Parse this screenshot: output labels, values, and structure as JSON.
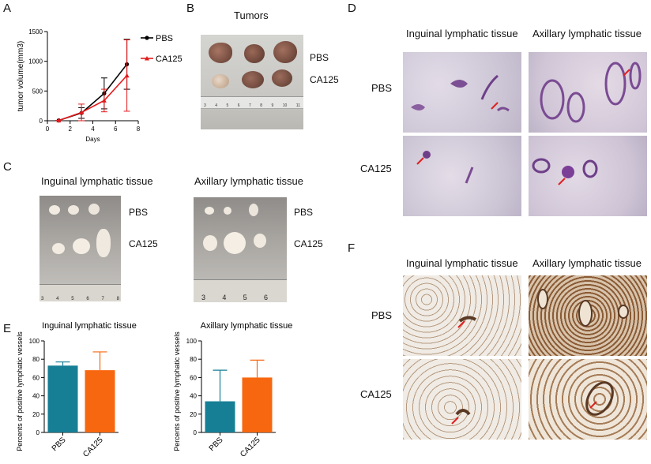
{
  "panels": {
    "a": "A",
    "b": "B",
    "c": "C",
    "d": "D",
    "e": "E",
    "f": "F"
  },
  "panel_b": {
    "title": "Tumors",
    "row1": "PBS",
    "row2": "CA125",
    "ruler_ticks": [
      "3",
      "4",
      "5",
      "6",
      "7",
      "8",
      "9",
      "10",
      "11"
    ]
  },
  "panel_c": {
    "left_title": "Inguinal lymphatic tissue",
    "right_title": "Axillary lymphatic tissue",
    "row1": "PBS",
    "row2": "CA125",
    "left_ruler_ticks": [
      "3",
      "4",
      "5",
      "6",
      "7",
      "8"
    ],
    "right_ruler_ticks": [
      "3",
      "4",
      "5",
      "6"
    ]
  },
  "panel_d": {
    "left_title": "Inguinal lymphatic tissue",
    "right_title": "Axillary lymphatic tissue",
    "row1": "PBS",
    "row2": "CA125"
  },
  "panel_f": {
    "left_title": "Inguinal lymphatic tissue",
    "right_title": "Axillary lymphatic tissue",
    "row1": "PBS",
    "row2": "CA125"
  },
  "colors": {
    "pbs_line": "#000000",
    "ca125_line": "#e31a1c",
    "pbs_bar": "#167f95",
    "ca125_bar": "#f7670f"
  },
  "chart_data": [
    {
      "type": "line",
      "xlabel": "Days",
      "ylabel": "tumor volume(mm3)",
      "x": [
        1,
        3,
        5,
        7
      ],
      "xlim": [
        0,
        8
      ],
      "ylim": [
        0,
        1500
      ],
      "xticks": [
        "0",
        "2",
        "4",
        "6",
        "8"
      ],
      "yticks": [
        "0",
        "500",
        "1000",
        "1500"
      ],
      "legend": "right",
      "series": [
        {
          "name": "PBS",
          "values": [
            5,
            130,
            460,
            950
          ],
          "error": [
            2,
            90,
            260,
            420
          ]
        },
        {
          "name": "CA125",
          "values": [
            5,
            140,
            340,
            760
          ],
          "error": [
            2,
            140,
            190,
            600
          ]
        }
      ]
    },
    {
      "type": "bar",
      "title": "Inguinal lymphatic tissue",
      "ylabel": "Percents of positive lymphatic vessels",
      "categories": [
        "PBS",
        "CA125"
      ],
      "values": [
        73,
        68
      ],
      "error": [
        4,
        20
      ],
      "ylim": [
        0,
        100
      ],
      "yticks": [
        "0",
        "20",
        "40",
        "60",
        "80",
        "100"
      ]
    },
    {
      "type": "bar",
      "title": "Axillary lymphatic tissue",
      "ylabel": "Percents of positive lymphatic vessels",
      "categories": [
        "PBS",
        "CA125"
      ],
      "values": [
        34,
        60
      ],
      "error": [
        34,
        19
      ],
      "ylim": [
        0,
        100
      ],
      "yticks": [
        "0",
        "20",
        "40",
        "60",
        "80",
        "100"
      ]
    }
  ]
}
